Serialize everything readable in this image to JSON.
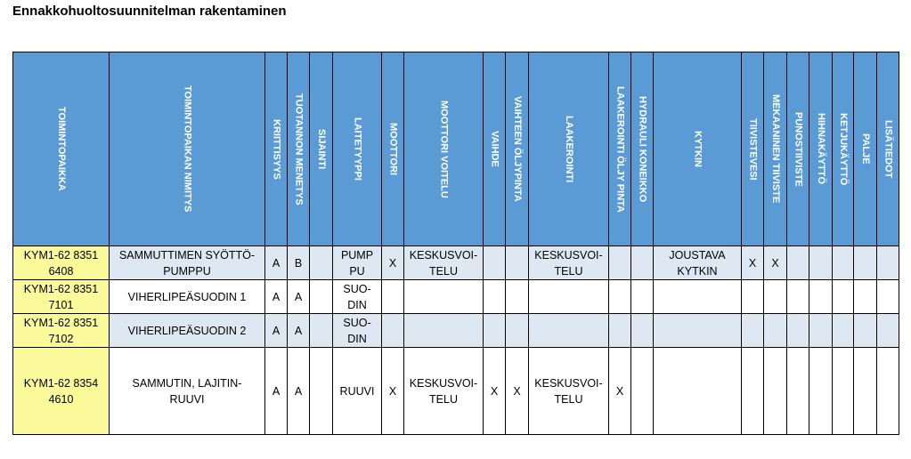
{
  "header": {
    "title": "Ennakkohuoltosuunnitelman rakentaminen"
  },
  "table": {
    "headers": [
      "TOIMINTOPAIKKA",
      "TOIMINTOPAIKAN NIMITYS",
      "KRIITTISYYS",
      "TUOTANNON MENETYS",
      "SIJAINTI",
      "LAITETYYPPI",
      "MOOTTORI",
      "MOOTTORI VOITELU",
      "VAIHDE",
      "VAIHTEEN ÖLJYPINTA",
      "LAAKEROINTI",
      "LAAKEROINTI ÖLJY PINTA",
      "HYDRAULI KONEIKKO",
      "KYTKIN",
      "TIIVISTEVESI",
      "MEKAANINEN TIIVISTE",
      "PUNOSTIIVISTE",
      "HIHNAKÄYTTÖ",
      "KETJUKÄYTTÖ",
      "PALJE",
      "LISÄTIEDOT"
    ],
    "rows": [
      [
        "KYM1-62 8351\n6408",
        "SAMMUTTIMEN SYÖTTÖ-\nPUMPPU",
        "A",
        "B",
        null,
        "PUMP\nPU",
        "X",
        "KESKUSVOI-\nTELU",
        null,
        null,
        "KESKUSVOI-\nTELU",
        null,
        null,
        "JOUSTAVA\nKYTKIN",
        "X",
        "X",
        null,
        null,
        null,
        null,
        null
      ],
      [
        "KYM1-62 8351\n7101",
        "VIHERLIPEÄSUODIN 1",
        "A",
        "A",
        null,
        "SUO-\nDIN",
        null,
        null,
        null,
        null,
        null,
        null,
        null,
        null,
        null,
        null,
        null,
        null,
        null,
        null,
        null
      ],
      [
        "KYM1-62 8351\n7102",
        "VIHERLIPEÄSUODIN 2",
        "A",
        "A",
        null,
        "SUO-\nDIN",
        null,
        null,
        null,
        null,
        null,
        null,
        null,
        null,
        null,
        null,
        null,
        null,
        null,
        null,
        null
      ],
      [
        "KYM1-62 8354\n4610",
        "SAMMUTIN, LAJITIN-\nRUUVI",
        "A",
        "A",
        null,
        "RUUVI",
        "X",
        "KESKUSVOI-\nTELU",
        "X",
        "X",
        "KESKUSVOI-\nTELU",
        "X",
        null,
        null,
        null,
        null,
        null,
        null,
        null,
        null,
        null
      ]
    ]
  }
}
